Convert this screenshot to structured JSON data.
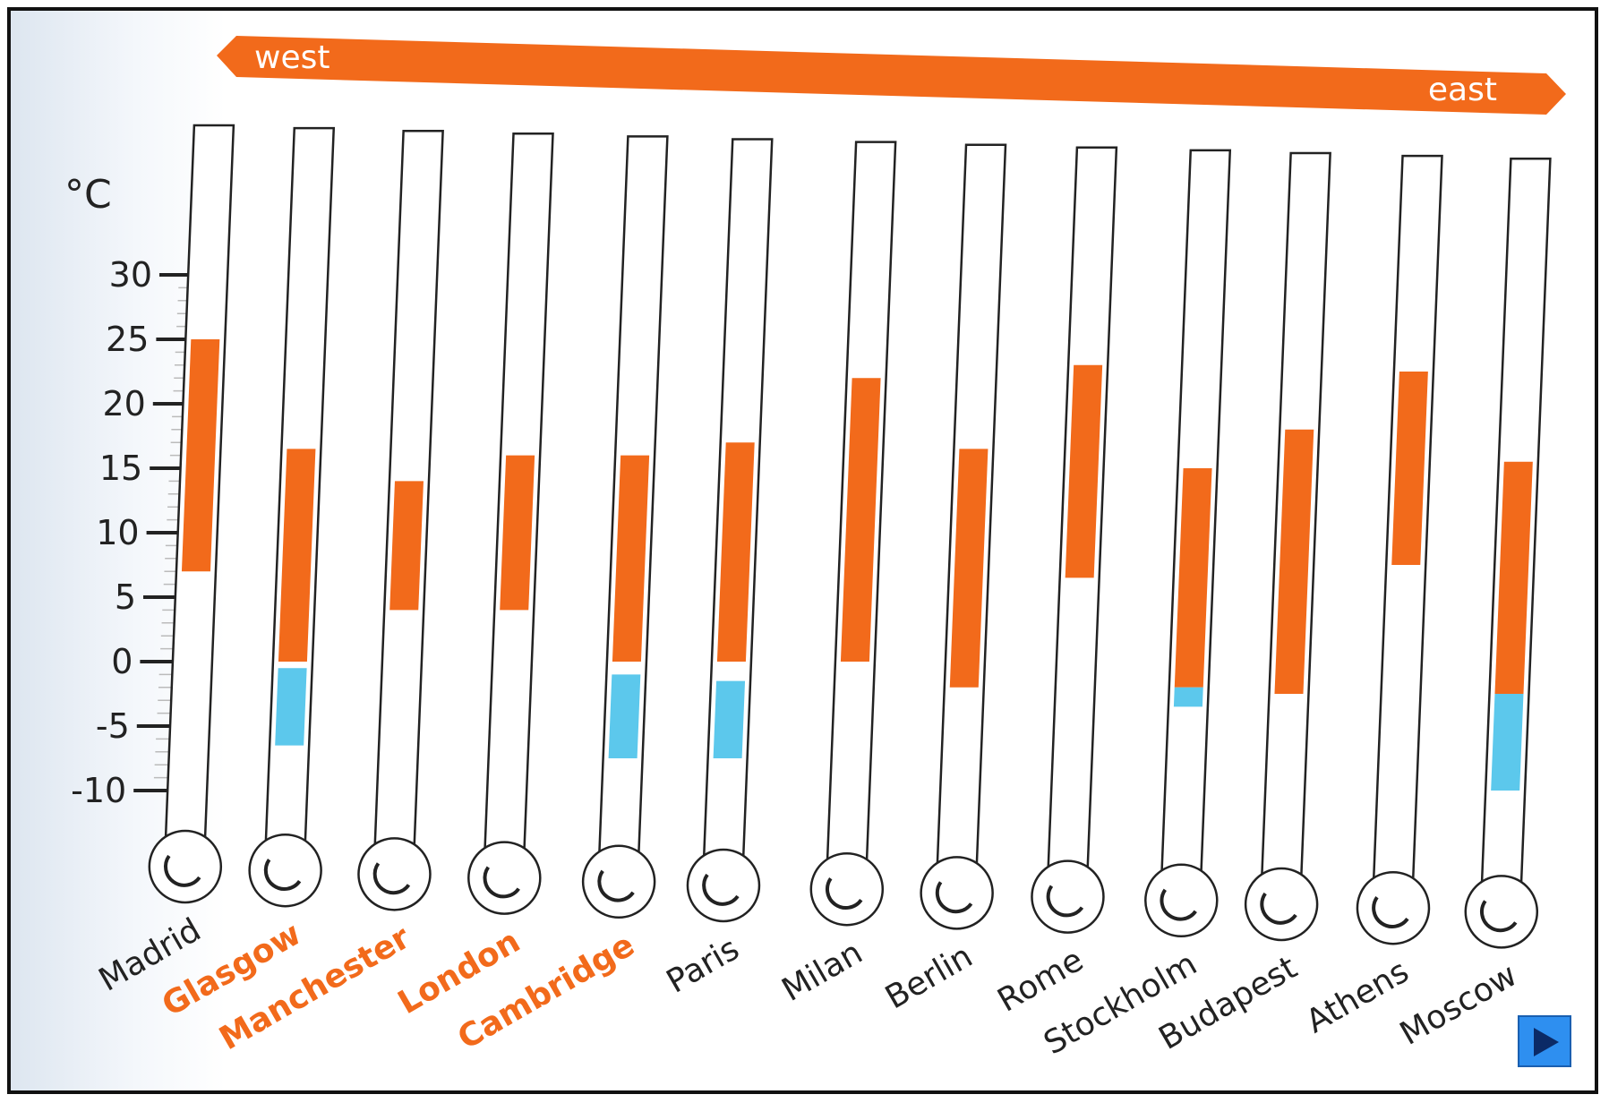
{
  "banner": {
    "west_label": "west",
    "east_label": "east"
  },
  "axis": {
    "unit_label": "°C",
    "ticks": [
      30,
      25,
      20,
      15,
      10,
      5,
      0,
      -5,
      -10
    ]
  },
  "colors": {
    "accent": "#f26a1b",
    "below_zero": "#5cc8ec",
    "highlight_text": "#f26a1b",
    "normal_text": "#222222"
  },
  "nav": {
    "next_icon": "play-triangle-icon"
  },
  "chart_data": {
    "type": "bar",
    "ylabel": "°C",
    "ylim": [
      -10,
      30
    ],
    "categories": [
      "Madrid",
      "Glasgow",
      "Manchester",
      "London",
      "Cambridge",
      "Paris",
      "Milan",
      "Berlin",
      "Rome",
      "Stockholm",
      "Budapest",
      "Athens",
      "Moscow"
    ],
    "highlighted": [
      "Glasgow",
      "Manchester",
      "London",
      "Cambridge"
    ],
    "series": [
      {
        "values": [
          [
            7,
            25
          ],
          [
            0,
            16.5
          ],
          [
            4,
            14
          ],
          [
            4,
            16
          ],
          [
            0,
            16
          ],
          [
            0,
            17
          ],
          [
            0,
            22
          ],
          [
            -2,
            16.5
          ],
          [
            6.5,
            23
          ],
          [
            -2,
            15
          ],
          [
            -2.5,
            18
          ],
          [
            7.5,
            22.5
          ],
          [
            -2.5,
            15.5
          ]
        ]
      },
      {
        "values": [
          [
            null,
            null
          ],
          [
            -6.5,
            -0.5
          ],
          [
            null,
            null
          ],
          [
            null,
            null
          ],
          [
            -7.5,
            -1
          ],
          [
            -7.5,
            -1.5
          ],
          [
            null,
            null
          ],
          [
            null,
            null
          ],
          [
            null,
            null
          ],
          [
            -3.5,
            -2
          ],
          [
            null,
            null
          ],
          [
            null,
            null
          ],
          [
            -10,
            -2.5
          ]
        ]
      }
    ]
  }
}
